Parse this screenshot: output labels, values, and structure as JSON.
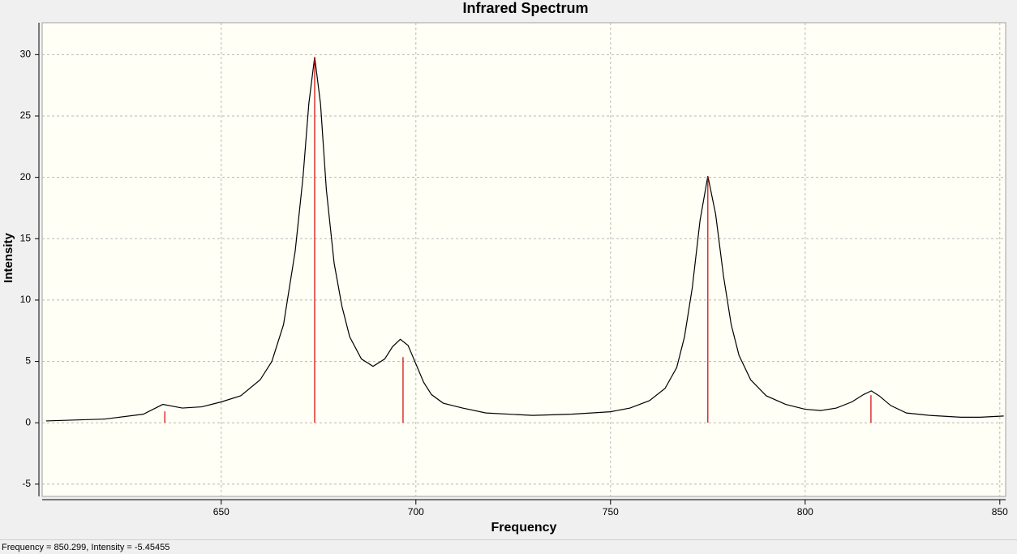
{
  "chart_data": {
    "type": "line",
    "title": "Infrared Spectrum",
    "x_label": "Frequency",
    "y_label": "Intensity",
    "xlim": [
      604,
      851.5
    ],
    "ylim": [
      -6,
      32.6
    ],
    "xticks": [
      650,
      700,
      750,
      800,
      850
    ],
    "yticks": [
      -5,
      0,
      5,
      10,
      15,
      20,
      25,
      30
    ],
    "grid": true,
    "spectrum": {
      "color": "#000000",
      "x": [
        605,
        620,
        630,
        635,
        640,
        645,
        650,
        655,
        660,
        663,
        666,
        669,
        671,
        672.5,
        674,
        675.5,
        677,
        679,
        681,
        683,
        686,
        689,
        692,
        694,
        696,
        698,
        700,
        702,
        704,
        707,
        712,
        718,
        730,
        740,
        750,
        755,
        760,
        764,
        767,
        769,
        771,
        773,
        775,
        777,
        779,
        781,
        783,
        786,
        790,
        795,
        800,
        804,
        808,
        812,
        815,
        817,
        819,
        822,
        826,
        832,
        840,
        845,
        851
      ],
      "y": [
        0.15,
        0.3,
        0.7,
        1.5,
        1.2,
        1.3,
        1.7,
        2.2,
        3.5,
        5,
        8,
        14,
        20,
        26,
        29.8,
        26,
        19,
        13,
        9.5,
        7,
        5.2,
        4.6,
        5.2,
        6.2,
        6.8,
        6.3,
        4.8,
        3.3,
        2.3,
        1.6,
        1.2,
        0.8,
        0.6,
        0.7,
        0.9,
        1.2,
        1.8,
        2.8,
        4.5,
        7,
        11,
        16.5,
        20.1,
        17,
        12,
        8,
        5.5,
        3.5,
        2.2,
        1.5,
        1.1,
        1.0,
        1.2,
        1.7,
        2.3,
        2.6,
        2.2,
        1.4,
        0.8,
        0.6,
        0.45,
        0.45,
        0.55
      ]
    },
    "peaks": {
      "color": "#d00000",
      "x": [
        635.5,
        674,
        696.7,
        775,
        816.9
      ],
      "y": [
        0.93,
        29.8,
        5.35,
        20.1,
        2.25
      ]
    }
  },
  "status_bar": {
    "text": "Frequency = 850.299,  Intensity = -5.45455"
  }
}
